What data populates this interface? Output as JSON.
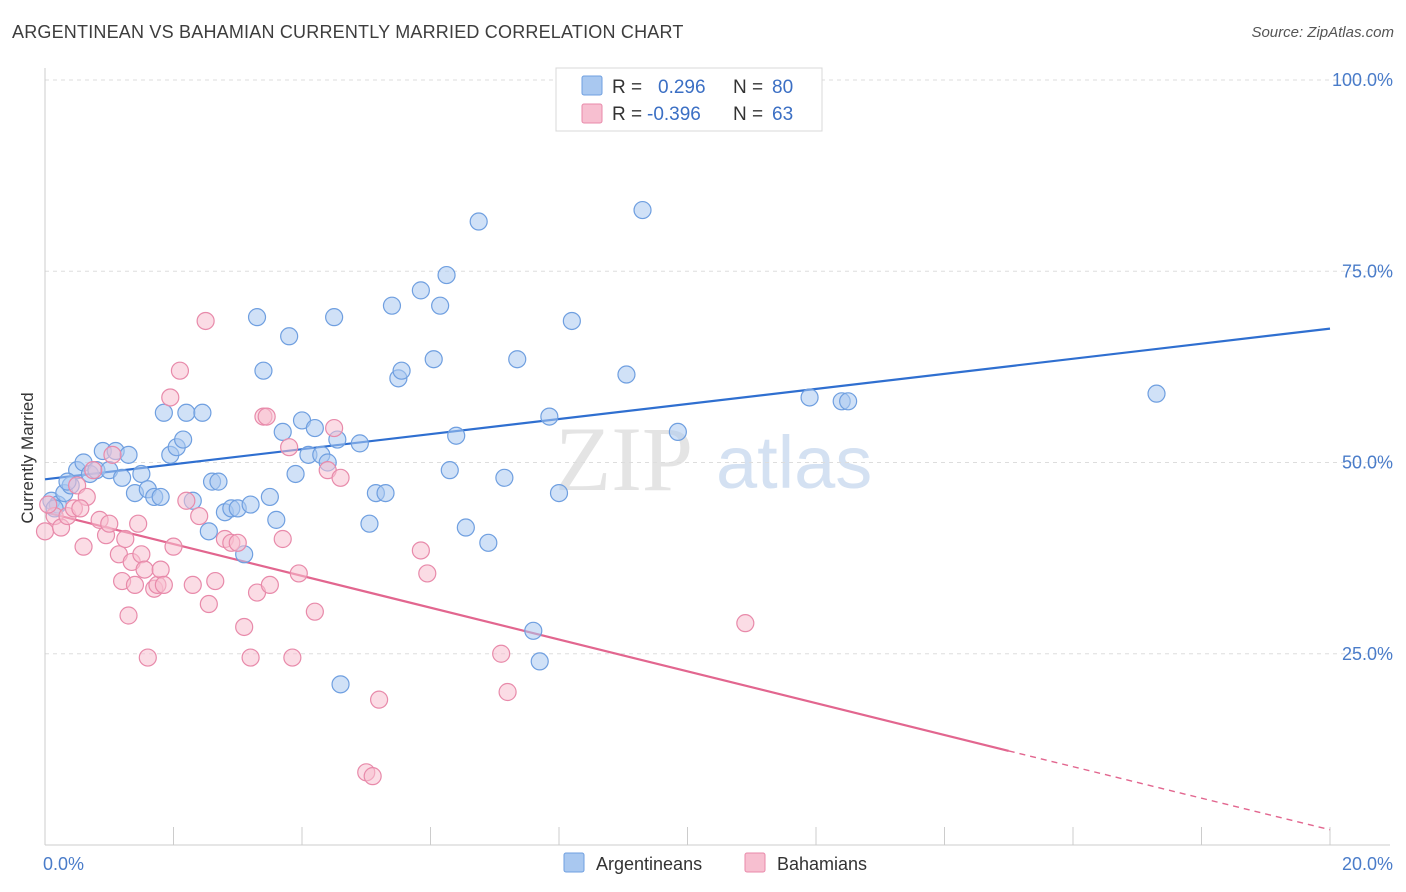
{
  "title": "ARGENTINEAN VS BAHAMIAN CURRENTLY MARRIED CORRELATION CHART",
  "source": "Source: ZipAtlas.com",
  "watermark": {
    "zip": "ZIP",
    "atlas": "atlas"
  },
  "stats": [
    {
      "r_label": "R =",
      "r_value": "0.296",
      "n_label": "N =",
      "n_value": "80",
      "color": "#a9c8f0",
      "stroke": "#6f9fe0"
    },
    {
      "r_label": "R =",
      "r_value": "-0.396",
      "n_label": "N =",
      "n_value": "63",
      "color": "#f7bfd0",
      "stroke": "#e88aaa"
    }
  ],
  "legend": [
    "Argentineans",
    "Bahamians"
  ],
  "chart_data": {
    "type": "scatter",
    "ylabel": "Currently Married",
    "xlabel": "",
    "x_tick_labels": [
      "0.0%",
      "20.0%"
    ],
    "y_tick_labels": [
      "100.0%",
      "75.0%",
      "50.0%",
      "25.0%"
    ],
    "xlim": [
      0,
      20
    ],
    "ylim": [
      0,
      100
    ],
    "y_ticks": [
      100,
      75,
      50,
      25
    ],
    "grid": "horizontal dashed",
    "series": [
      {
        "name": "Argentineans",
        "color": "#6f9fe0",
        "fill": "#a9c8f0",
        "trend": {
          "x0": 0,
          "y0": 47.8,
          "x1": 20,
          "y1": 67.5,
          "color": "#2f6fd0"
        },
        "points": [
          [
            0.1,
            45
          ],
          [
            0.2,
            44.5
          ],
          [
            0.3,
            46
          ],
          [
            0.4,
            47
          ],
          [
            0.5,
            49
          ],
          [
            0.6,
            50
          ],
          [
            0.7,
            48.5
          ],
          [
            0.8,
            49
          ],
          [
            0.9,
            51.5
          ],
          [
            1.0,
            49
          ],
          [
            1.1,
            51.5
          ],
          [
            1.2,
            48
          ],
          [
            1.3,
            51
          ],
          [
            1.4,
            46
          ],
          [
            1.5,
            48.5
          ],
          [
            1.6,
            46.5
          ],
          [
            1.7,
            45.5
          ],
          [
            1.8,
            45.5
          ],
          [
            1.85,
            56.5
          ],
          [
            1.95,
            51
          ],
          [
            2.05,
            52
          ],
          [
            2.15,
            53
          ],
          [
            2.2,
            56.5
          ],
          [
            2.3,
            45
          ],
          [
            2.45,
            56.5
          ],
          [
            2.55,
            41
          ],
          [
            2.6,
            47.5
          ],
          [
            2.7,
            47.5
          ],
          [
            2.8,
            43.5
          ],
          [
            2.9,
            44
          ],
          [
            3.0,
            44
          ],
          [
            3.1,
            38
          ],
          [
            3.2,
            44.5
          ],
          [
            3.3,
            69
          ],
          [
            3.4,
            62
          ],
          [
            3.5,
            45.5
          ],
          [
            3.6,
            42.5
          ],
          [
            3.7,
            54
          ],
          [
            3.8,
            66.5
          ],
          [
            3.9,
            48.5
          ],
          [
            4.0,
            55.5
          ],
          [
            4.1,
            51
          ],
          [
            4.2,
            54.5
          ],
          [
            4.3,
            51
          ],
          [
            4.4,
            50
          ],
          [
            4.5,
            69
          ],
          [
            4.55,
            53
          ],
          [
            4.6,
            21
          ],
          [
            4.9,
            52.5
          ],
          [
            5.05,
            42
          ],
          [
            5.15,
            46
          ],
          [
            5.3,
            46
          ],
          [
            5.5,
            61
          ],
          [
            5.55,
            62
          ],
          [
            5.4,
            70.5
          ],
          [
            5.85,
            72.5
          ],
          [
            6.05,
            63.5
          ],
          [
            6.15,
            70.5
          ],
          [
            6.25,
            74.5
          ],
          [
            6.3,
            49
          ],
          [
            6.4,
            53.5
          ],
          [
            6.55,
            41.5
          ],
          [
            6.75,
            81.5
          ],
          [
            6.9,
            39.5
          ],
          [
            7.15,
            48
          ],
          [
            7.35,
            63.5
          ],
          [
            7.6,
            28
          ],
          [
            7.7,
            24
          ],
          [
            7.85,
            56
          ],
          [
            8.0,
            46
          ],
          [
            8.2,
            68.5
          ],
          [
            9.05,
            61.5
          ],
          [
            9.3,
            83
          ],
          [
            9.85,
            54
          ],
          [
            11.9,
            58.5
          ],
          [
            12.4,
            58
          ],
          [
            12.5,
            58
          ],
          [
            17.3,
            59
          ],
          [
            0.15,
            44
          ],
          [
            0.35,
            47.5
          ]
        ]
      },
      {
        "name": "Bahamians",
        "color": "#e88aaa",
        "fill": "#f7bfd0",
        "trend": {
          "x0": 0,
          "y0": 43.5,
          "x1": 15,
          "y1": 12.3,
          "dash_x1": 20,
          "dash_y1": 2.0,
          "color": "#e2668f"
        },
        "points": [
          [
            0.0,
            41
          ],
          [
            0.15,
            43
          ],
          [
            0.25,
            41.5
          ],
          [
            0.35,
            43
          ],
          [
            0.45,
            44
          ],
          [
            0.5,
            47
          ],
          [
            0.6,
            39
          ],
          [
            0.65,
            45.5
          ],
          [
            0.75,
            49
          ],
          [
            0.85,
            42.5
          ],
          [
            0.95,
            40.5
          ],
          [
            1.0,
            42
          ],
          [
            1.05,
            51
          ],
          [
            1.15,
            38
          ],
          [
            1.2,
            34.5
          ],
          [
            1.25,
            40
          ],
          [
            1.3,
            30
          ],
          [
            1.35,
            37
          ],
          [
            1.4,
            34
          ],
          [
            1.45,
            42
          ],
          [
            1.5,
            38
          ],
          [
            1.55,
            36
          ],
          [
            1.6,
            24.5
          ],
          [
            1.7,
            33.5
          ],
          [
            1.75,
            34
          ],
          [
            1.8,
            36
          ],
          [
            1.85,
            34
          ],
          [
            1.95,
            58.5
          ],
          [
            2.0,
            39
          ],
          [
            2.1,
            62
          ],
          [
            2.2,
            45
          ],
          [
            2.3,
            34
          ],
          [
            2.4,
            43
          ],
          [
            2.5,
            68.5
          ],
          [
            2.55,
            31.5
          ],
          [
            2.65,
            34.5
          ],
          [
            2.8,
            40
          ],
          [
            2.9,
            39.5
          ],
          [
            3.0,
            39.5
          ],
          [
            3.1,
            28.5
          ],
          [
            3.2,
            24.5
          ],
          [
            3.3,
            33
          ],
          [
            3.4,
            56
          ],
          [
            3.45,
            56
          ],
          [
            3.5,
            34
          ],
          [
            3.7,
            40
          ],
          [
            3.8,
            52
          ],
          [
            3.85,
            24.5
          ],
          [
            3.95,
            35.5
          ],
          [
            4.2,
            30.5
          ],
          [
            4.4,
            49
          ],
          [
            4.5,
            54.5
          ],
          [
            4.6,
            48
          ],
          [
            5.0,
            9.5
          ],
          [
            5.1,
            9
          ],
          [
            5.2,
            19
          ],
          [
            5.85,
            38.5
          ],
          [
            5.95,
            35.5
          ],
          [
            7.1,
            25
          ],
          [
            7.2,
            20
          ],
          [
            10.9,
            29
          ],
          [
            0.05,
            44.5
          ],
          [
            0.55,
            44
          ]
        ]
      }
    ]
  }
}
